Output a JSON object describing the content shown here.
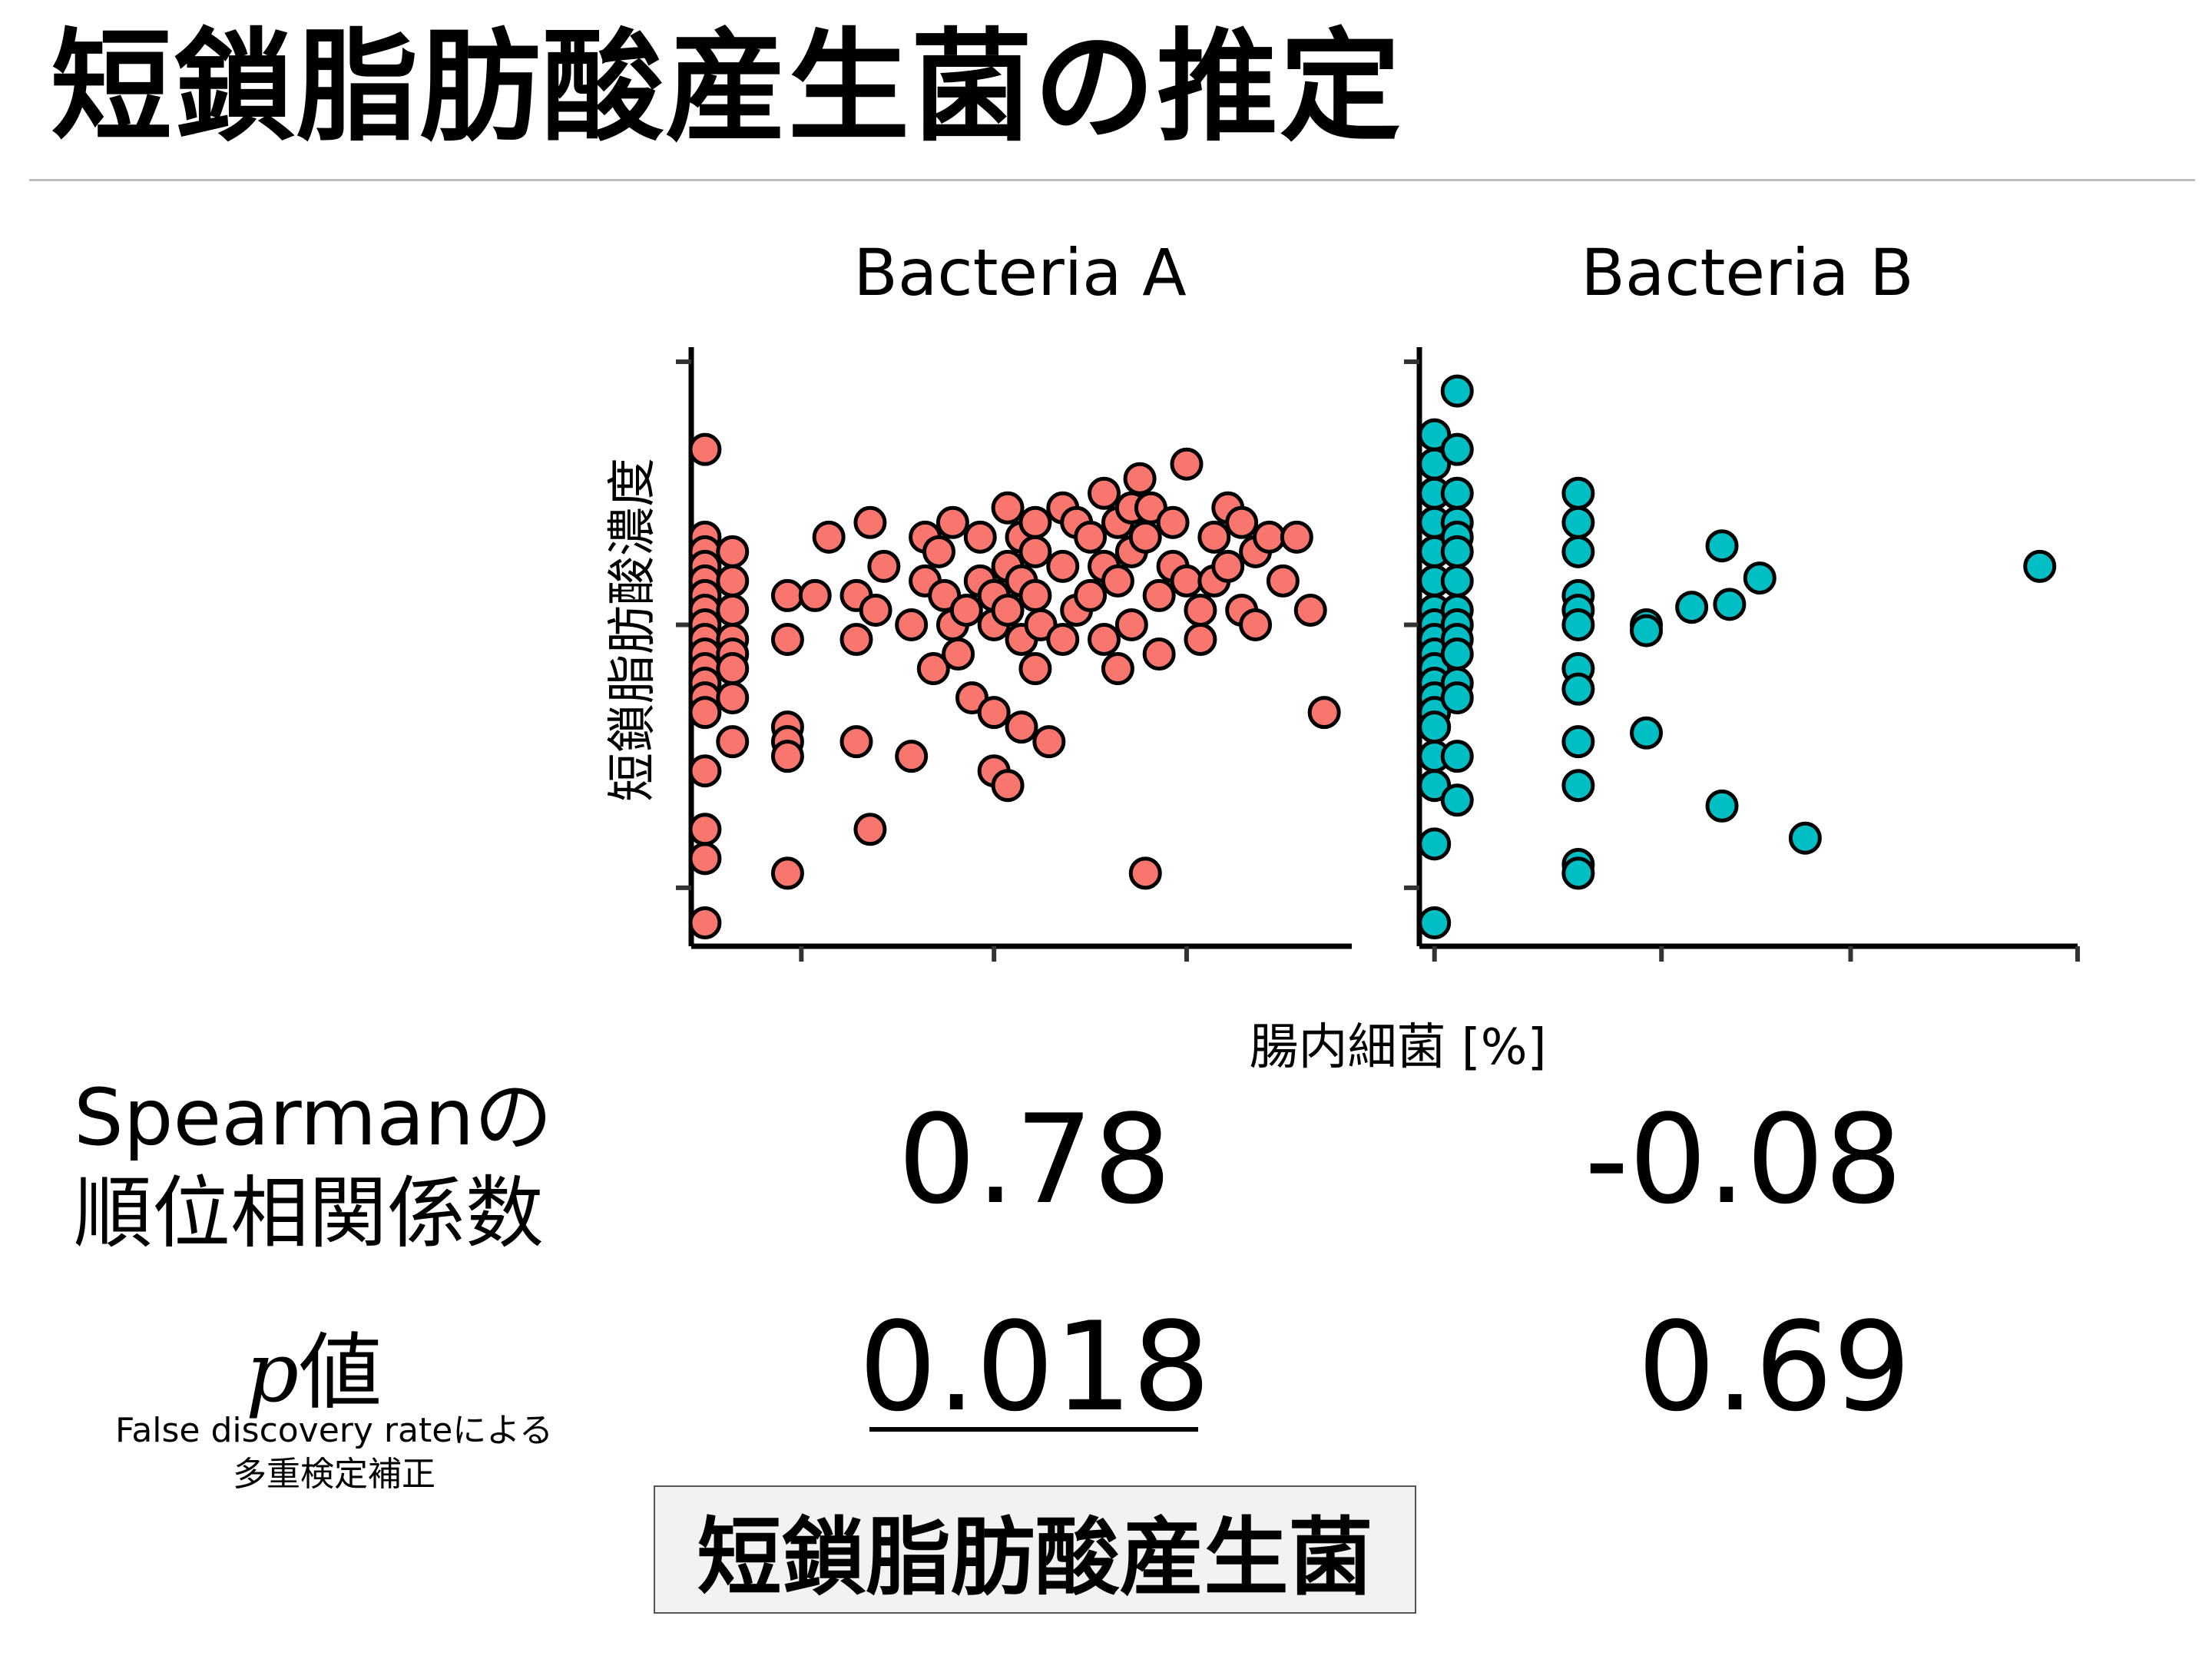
{
  "slide": {
    "title": "短鎖脂肪酸産生菌の推定",
    "y_label": "短鎖脂肪酸濃度",
    "x_label": "腸内細菌 [%]",
    "spearman_label_line1": "Spearmanの",
    "spearman_label_line2": "順位相関係数",
    "p_label_italic": "p",
    "p_label_rest": "値",
    "fdr_line1": "False discovery rateによる",
    "fdr_line2": "多重検定補正",
    "spearman_a": "0.78",
    "spearman_b": "-0.08",
    "p_a": "0.018",
    "p_b": "0.69",
    "conclusion": "短鎖脂肪酸産生菌"
  },
  "colors": {
    "bacteria_a": "#f8766d",
    "bacteria_b": "#00bfc4",
    "rule": "#bdbdbd"
  },
  "chart_data": [
    {
      "type": "scatter",
      "title": "Bacteria A",
      "xlabel": "腸内細菌 [%]",
      "ylabel": "短鎖脂肪酸濃度",
      "xlim": [
        -0.05,
        2.35
      ],
      "ylim": [
        -0.1,
        1.95
      ],
      "x_ticks": [
        0.35,
        1.05,
        1.75
      ],
      "y_ticks": [
        0.1,
        1.0,
        1.9
      ],
      "tick_labels_shown": false,
      "grid": false,
      "x": [
        0,
        0,
        0,
        0,
        0,
        0,
        0,
        0,
        0,
        0,
        0,
        0,
        0,
        0,
        0,
        0,
        0,
        0,
        0.1,
        0.1,
        0.1,
        0.1,
        0.1,
        0.1,
        0.1,
        0.1,
        0.3,
        0.3,
        0.3,
        0.3,
        0.3,
        0.3,
        0.4,
        0.45,
        0.55,
        0.55,
        0.55,
        0.6,
        0.6,
        0.62,
        0.65,
        0.75,
        0.75,
        0.8,
        0.8,
        0.83,
        0.85,
        0.87,
        0.9,
        0.9,
        0.92,
        0.95,
        0.97,
        1.0,
        1.0,
        1.05,
        1.05,
        1.05,
        1.05,
        1.1,
        1.1,
        1.1,
        1.1,
        1.15,
        1.15,
        1.15,
        1.15,
        1.2,
        1.2,
        1.2,
        1.2,
        1.22,
        1.25,
        1.3,
        1.3,
        1.3,
        1.35,
        1.35,
        1.4,
        1.4,
        1.45,
        1.45,
        1.45,
        1.5,
        1.5,
        1.5,
        1.55,
        1.55,
        1.55,
        1.58,
        1.6,
        1.6,
        1.62,
        1.65,
        1.65,
        1.7,
        1.7,
        1.75,
        1.75,
        1.8,
        1.8,
        1.85,
        1.85,
        1.9,
        1.9,
        1.95,
        1.95,
        2.0,
        2.0,
        2.05,
        2.1,
        2.15,
        2.2,
        2.25
      ],
      "y": [
        1.6,
        1.3,
        1.25,
        1.2,
        1.15,
        1.1,
        1.05,
        1.0,
        0.95,
        0.9,
        0.85,
        0.8,
        0.75,
        0.7,
        0.5,
        0.3,
        0.2,
        -0.02,
        1.25,
        1.15,
        1.05,
        0.95,
        0.9,
        0.85,
        0.75,
        0.6,
        1.1,
        0.95,
        0.65,
        0.6,
        0.55,
        0.15,
        1.1,
        1.3,
        0.95,
        1.1,
        0.6,
        1.35,
        0.3,
        1.05,
        1.2,
        1.0,
        0.55,
        1.3,
        1.15,
        0.85,
        1.25,
        1.1,
        1.35,
        1.0,
        0.9,
        1.05,
        0.75,
        1.3,
        1.15,
        1.1,
        0.7,
        1.0,
        0.5,
        1.4,
        1.2,
        1.05,
        0.45,
        1.3,
        1.15,
        0.95,
        0.65,
        1.35,
        1.25,
        1.1,
        0.85,
        1.0,
        0.6,
        1.4,
        1.2,
        0.95,
        1.35,
        1.05,
        1.3,
        1.1,
        1.45,
        1.2,
        0.95,
        1.35,
        1.15,
        0.85,
        1.4,
        1.25,
        1.0,
        1.5,
        1.3,
        0.15,
        1.4,
        1.1,
        0.9,
        1.35,
        1.2,
        1.15,
        1.55,
        1.05,
        0.95,
        1.3,
        1.15,
        1.4,
        1.2,
        1.35,
        1.05,
        1.25,
        1.0,
        1.3,
        1.15,
        1.3,
        1.05,
        0.7
      ],
      "markers": "filled circles"
    },
    {
      "type": "scatter",
      "title": "Bacteria B",
      "xlabel": "腸内細菌 [%]",
      "ylabel": "短鎖脂肪酸濃度",
      "xlim": [
        -0.02,
        0.85
      ],
      "ylim": [
        -0.1,
        1.95
      ],
      "x_ticks": [
        0.0,
        0.3,
        0.55,
        0.85
      ],
      "y_ticks": [
        0.1,
        1.0,
        1.9
      ],
      "tick_labels_shown": false,
      "grid": false,
      "x": [
        0,
        0,
        0,
        0,
        0,
        0,
        0,
        0,
        0,
        0,
        0,
        0,
        0,
        0,
        0,
        0,
        0,
        0,
        0,
        0.03,
        0.03,
        0.03,
        0.03,
        0.03,
        0.03,
        0.03,
        0.03,
        0.03,
        0.03,
        0.03,
        0.03,
        0.03,
        0.03,
        0.03,
        0.19,
        0.19,
        0.19,
        0.19,
        0.19,
        0.19,
        0.19,
        0.19,
        0.19,
        0.19,
        0.19,
        0.19,
        0.28,
        0.28,
        0.28,
        0.34,
        0.38,
        0.38,
        0.39,
        0.43,
        0.49,
        0.8
      ],
      "y": [
        1.65,
        1.55,
        1.45,
        1.35,
        1.25,
        1.15,
        1.05,
        1.0,
        0.95,
        0.9,
        0.85,
        0.8,
        0.75,
        0.7,
        0.65,
        0.55,
        0.45,
        0.25,
        -0.02,
        1.8,
        1.6,
        1.45,
        1.35,
        1.3,
        1.25,
        1.15,
        1.05,
        1.0,
        0.95,
        0.9,
        0.8,
        0.75,
        0.55,
        0.4,
        1.45,
        1.35,
        1.25,
        1.1,
        1.05,
        1.0,
        0.85,
        0.78,
        0.6,
        0.45,
        0.18,
        0.15,
        1.0,
        0.98,
        0.63,
        1.06,
        1.27,
        0.38,
        1.07,
        1.16,
        0.27,
        1.2
      ],
      "markers": "filled circles"
    }
  ]
}
